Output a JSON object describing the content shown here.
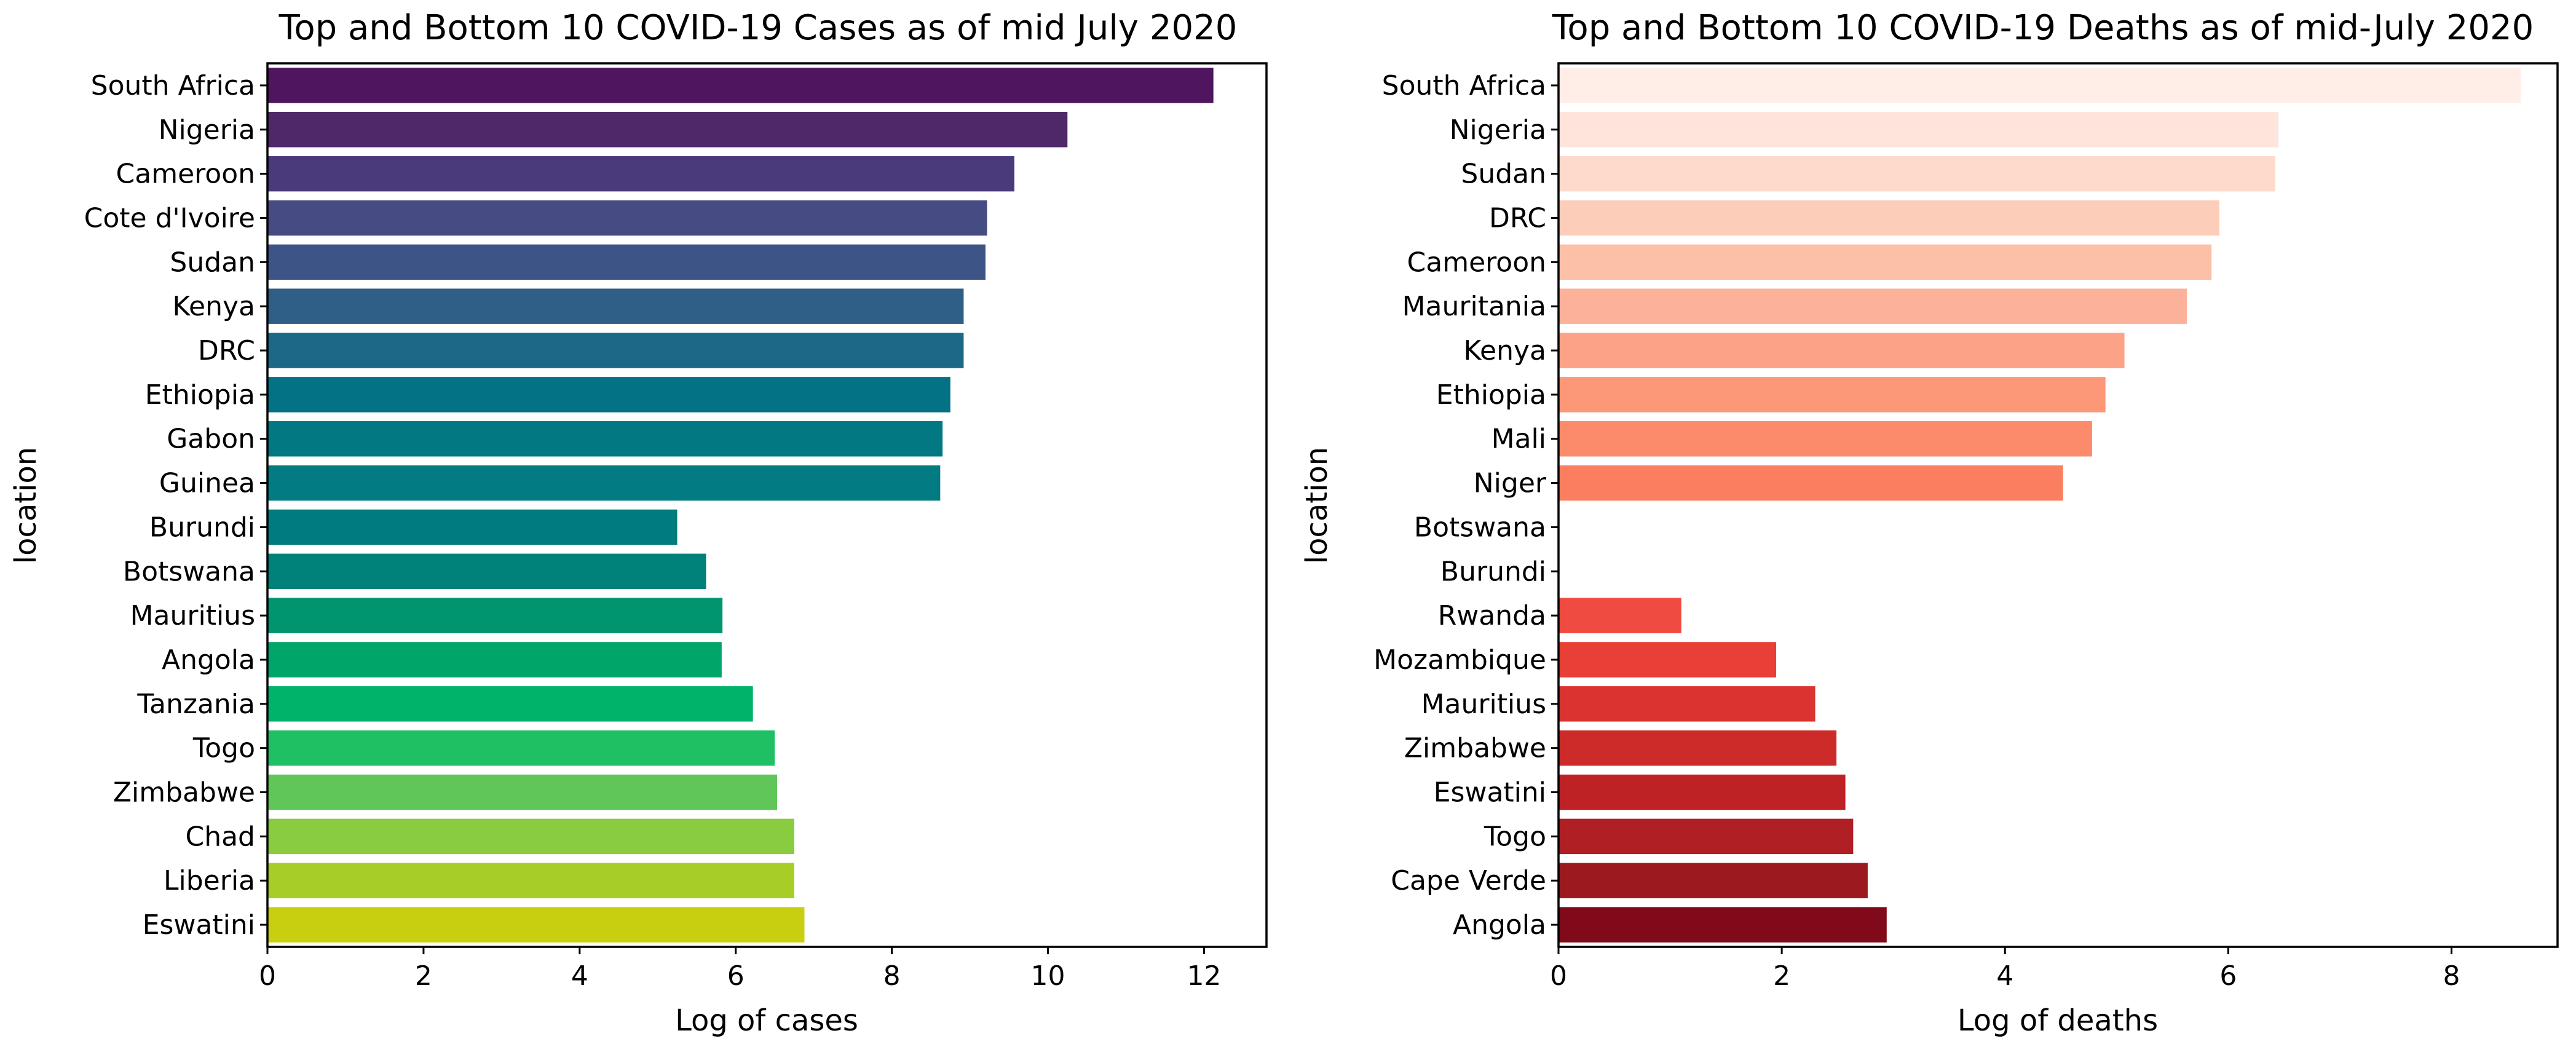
{
  "chart_data": [
    {
      "type": "bar",
      "orientation": "horizontal",
      "title": "Top and Bottom 10 COVID-19 Cases as of mid July 2020",
      "xlabel": "Log of cases",
      "ylabel": "location",
      "xlim": [
        0,
        12.8
      ],
      "xticks": [
        0,
        2,
        4,
        6,
        8,
        10,
        12
      ],
      "grid": false,
      "categories": [
        "South Africa",
        "Nigeria",
        "Cameroon",
        "Cote d'Ivoire",
        "Sudan",
        "Kenya",
        "DRC",
        "Ethiopia",
        "Gabon",
        "Guinea",
        "Burundi",
        "Botswana",
        "Mauritius",
        "Angola",
        "Tanzania",
        "Togo",
        "Zimbabwe",
        "Chad",
        "Liberia",
        "Eswatini"
      ],
      "values": [
        12.12,
        10.25,
        9.57,
        9.22,
        9.2,
        8.92,
        8.92,
        8.75,
        8.65,
        8.62,
        5.25,
        5.62,
        5.83,
        5.82,
        6.22,
        6.5,
        6.53,
        6.75,
        6.75,
        6.88
      ],
      "colors": [
        "#4f165f",
        "#4e2869",
        "#4b3a7b",
        "#464b83",
        "#3c5586",
        "#2f5e87",
        "#1c6887",
        "#047285",
        "#017882",
        "#027c82",
        "#017c7e",
        "#00827a",
        "#00956f",
        "#00a669",
        "#00b36b",
        "#1ec063",
        "#60c659",
        "#89cc40",
        "#a7ce27",
        "#c8cf0f"
      ]
    },
    {
      "type": "bar",
      "orientation": "horizontal",
      "title": "Top and Bottom 10 COVID-19 Deaths as of mid-July 2020",
      "xlabel": "Log of deaths",
      "ylabel": "location",
      "xlim": [
        0,
        8.95
      ],
      "xticks": [
        0,
        2,
        4,
        6,
        8
      ],
      "grid": false,
      "categories": [
        "South Africa",
        "Nigeria",
        "Sudan",
        "DRC",
        "Cameroon",
        "Mauritania",
        "Kenya",
        "Ethiopia",
        "Mali",
        "Niger",
        "Botswana",
        "Burundi",
        "Rwanda",
        "Mozambique",
        "Mauritius",
        "Zimbabwe",
        "Eswatini",
        "Togo",
        "Cape Verde",
        "Angola"
      ],
      "values": [
        8.62,
        6.45,
        6.42,
        5.92,
        5.85,
        5.63,
        5.07,
        4.9,
        4.78,
        4.52,
        0,
        0,
        1.1,
        1.95,
        2.3,
        2.49,
        2.57,
        2.64,
        2.77,
        2.94
      ],
      "colors": [
        "#ffede7",
        "#fee4da",
        "#fddacc",
        "#fccdb9",
        "#fcc0a6",
        "#fcb29a",
        "#fca387",
        "#fc9877",
        "#fc8b6b",
        "#fb7e61",
        "#fa6e56",
        "#f6604b",
        "#f04b40",
        "#e83f36",
        "#db3430",
        "#cc2b29",
        "#be2225",
        "#b01f24",
        "#9c1a1f",
        "#800a19"
      ]
    }
  ]
}
